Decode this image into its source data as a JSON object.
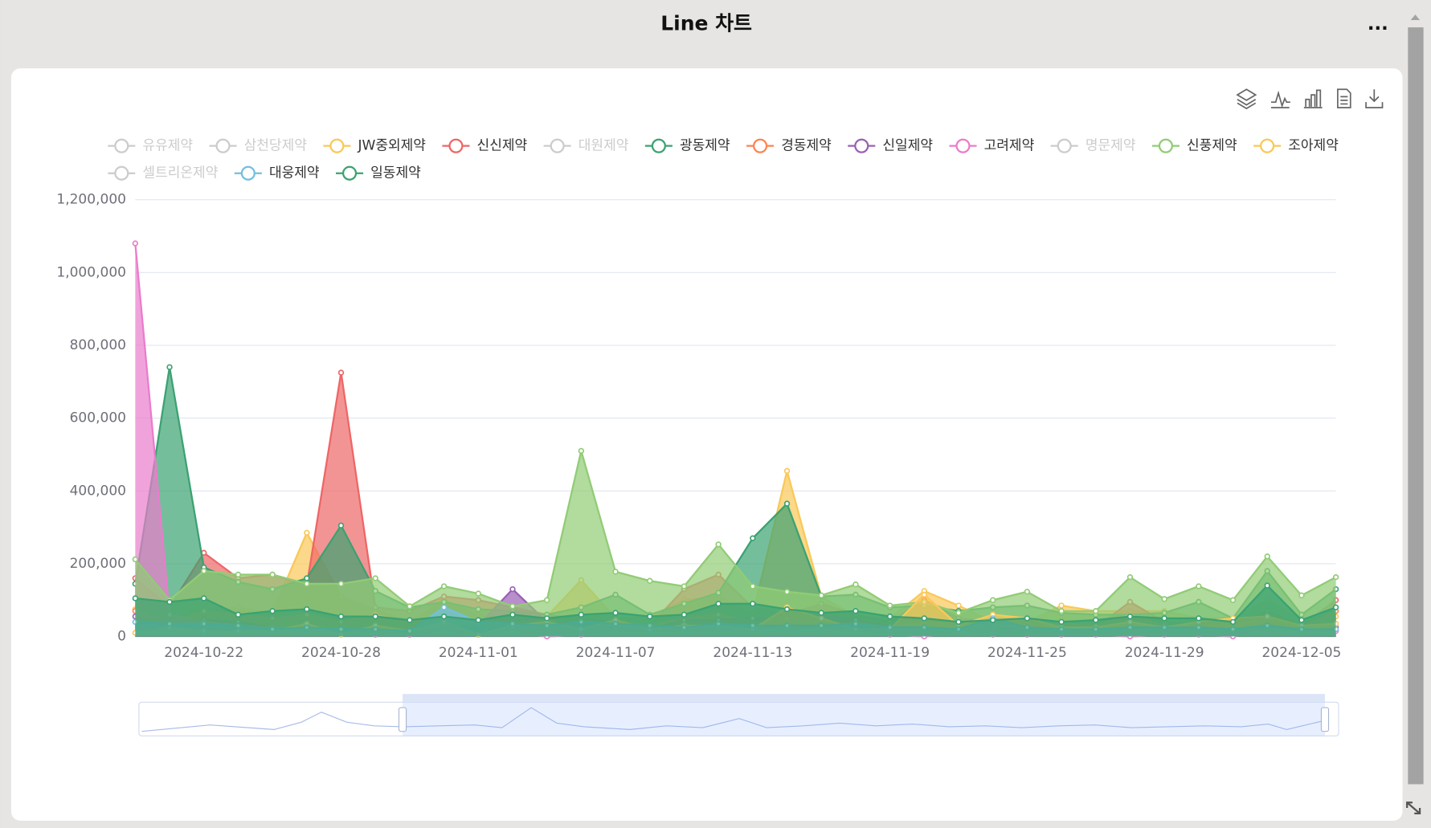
{
  "header": {
    "title": "Line 차트",
    "menu": "..."
  },
  "chart_data": {
    "type": "area",
    "categories": [
      null,
      null,
      "2024-10-22",
      null,
      null,
      null,
      "2024-10-28",
      null,
      null,
      null,
      "2024-11-01",
      null,
      null,
      null,
      "2024-11-07",
      null,
      null,
      null,
      "2024-11-13",
      null,
      null,
      null,
      "2024-11-19",
      null,
      null,
      null,
      "2024-11-25",
      null,
      null,
      null,
      "2024-11-29",
      null,
      null,
      null,
      "2024-12-05",
      null
    ],
    "ylim": [
      0,
      1200000
    ],
    "yticks": [
      0,
      {
        "value": 200000,
        "label": "200,000"
      },
      {
        "value": 400000,
        "label": "400,000"
      },
      {
        "value": 600000,
        "label": "600,000"
      },
      {
        "value": 800000,
        "label": "800,000"
      },
      {
        "value": 1000000,
        "label": "1,000,000"
      },
      {
        "value": 1200000,
        "label": "1,200,000"
      }
    ],
    "grid": true,
    "legend": "top",
    "series": [
      {
        "name": "유유제약",
        "visible": false
      },
      {
        "name": "삼천당제약",
        "visible": false
      },
      {
        "name": "JW중외제약",
        "visible": true,
        "color": "#fac858",
        "values": [
          75000,
          45000,
          75000,
          80000,
          65000,
          285000,
          110000,
          75000,
          40000,
          100000,
          60000,
          40000,
          55000,
          155000,
          50000,
          55000,
          100000,
          110000,
          60000,
          455000,
          110000,
          55000,
          50000,
          125000,
          85000,
          40000,
          40000,
          85000,
          70000,
          70000,
          70000,
          50000,
          50000,
          100000,
          50000,
          55000
        ]
      },
      {
        "name": "신신제약",
        "visible": true,
        "color": "#ee6666",
        "values": [
          160000,
          80000,
          230000,
          160000,
          170000,
          140000,
          725000,
          80000,
          70000,
          110000,
          100000,
          80000,
          60000,
          50000,
          40000,
          30000,
          130000,
          170000,
          80000,
          60000,
          90000,
          60000,
          40000,
          100000,
          50000,
          40000,
          30000,
          30000,
          25000,
          95000,
          40000,
          35000,
          30000,
          70000,
          30000,
          100000
        ]
      },
      {
        "name": "대원제약",
        "visible": false
      },
      {
        "name": "광동제약",
        "visible": true,
        "color": "#3ba272",
        "values": [
          145000,
          740000,
          190000,
          150000,
          130000,
          160000,
          305000,
          125000,
          80000,
          95000,
          75000,
          70000,
          60000,
          80000,
          115000,
          60000,
          90000,
          120000,
          270000,
          365000,
          110000,
          115000,
          80000,
          85000,
          70000,
          80000,
          85000,
          65000,
          60000,
          60000,
          65000,
          95000,
          50000,
          180000,
          60000,
          130000
        ]
      },
      {
        "name": "경동제약",
        "visible": true,
        "color": "#fc8452",
        "values": [
          70000,
          40000,
          70000,
          60000,
          50000,
          60000,
          40000,
          60000,
          40000,
          50000,
          45000,
          40000,
          45000,
          30000,
          40000,
          30000,
          50000,
          60000,
          40000,
          35000,
          30000,
          40000,
          30000,
          40000,
          35000,
          30000,
          30000,
          35000,
          30000,
          60000,
          30000,
          30000,
          35000,
          50000,
          25000,
          70000
        ]
      },
      {
        "name": "신일제약",
        "visible": true,
        "color": "#9a60b4",
        "values": [
          55000,
          40000,
          45000,
          40000,
          25000,
          20000,
          15000,
          20000,
          10000,
          25000,
          30000,
          130000,
          40000,
          35000,
          25000,
          20000,
          45000,
          45000,
          50000,
          50000,
          60000,
          45000,
          30000,
          25000,
          20000,
          25000,
          20000,
          20000,
          15000,
          20000,
          20000,
          20000,
          20000,
          35000,
          15000,
          25000
        ]
      },
      {
        "name": "고려제약",
        "visible": true,
        "color": "#ea7ccc",
        "values": [
          1080000,
          60000,
          40000,
          30000,
          25000,
          20000,
          15000,
          5000,
          5000,
          10000,
          5000,
          10000,
          0,
          5000,
          10000,
          10000,
          10000,
          15000,
          20000,
          15000,
          20000,
          10000,
          5000,
          0,
          10000,
          5000,
          5000,
          5000,
          5000,
          0,
          5000,
          5000,
          0,
          20000,
          10000,
          15000
        ]
      },
      {
        "name": "명문제약",
        "visible": false
      },
      {
        "name": "신풍제약",
        "visible": true,
        "color": "#91cc75",
        "values": [
          212000,
          100000,
          180000,
          170000,
          170000,
          145000,
          145000,
          160000,
          83000,
          138000,
          118000,
          83000,
          100000,
          510000,
          178000,
          153000,
          138000,
          253000,
          138000,
          123000,
          113000,
          143000,
          85000,
          95000,
          65000,
          100000,
          123000,
          70000,
          70000,
          163000,
          103000,
          138000,
          100000,
          220000,
          113000,
          163000
        ]
      },
      {
        "name": "조아제약",
        "visible": true,
        "color": "#fac858",
        "values": [
          10000,
          25000,
          15000,
          15000,
          15000,
          35000,
          5000,
          30000,
          15000,
          40000,
          5000,
          30000,
          40000,
          20000,
          45000,
          20000,
          30000,
          30000,
          20000,
          80000,
          50000,
          20000,
          20000,
          115000,
          30000,
          60000,
          50000,
          25000,
          25000,
          40000,
          25000,
          40000,
          50000,
          55000,
          30000,
          35000
        ]
      },
      {
        "name": "셀트리온제약",
        "visible": false
      },
      {
        "name": "대웅제약",
        "visible": true,
        "color": "#73c0de",
        "values": [
          40000,
          35000,
          35000,
          30000,
          20000,
          25000,
          20000,
          20000,
          15000,
          80000,
          40000,
          35000,
          30000,
          40000,
          35000,
          30000,
          25000,
          35000,
          30000,
          30000,
          30000,
          35000,
          25000,
          25000,
          20000,
          50000,
          25000,
          20000,
          20000,
          25000,
          25000,
          25000,
          20000,
          30000,
          20000,
          20000
        ]
      },
      {
        "name": "일동제약",
        "visible": true,
        "color": "#3ba272",
        "values": [
          105000,
          95000,
          105000,
          60000,
          70000,
          75000,
          55000,
          55000,
          45000,
          55000,
          45000,
          60000,
          50000,
          60000,
          65000,
          55000,
          60000,
          90000,
          90000,
          75000,
          65000,
          70000,
          55000,
          50000,
          40000,
          45000,
          50000,
          40000,
          45000,
          55000,
          50000,
          50000,
          40000,
          140000,
          45000,
          80000
        ]
      }
    ]
  }
}
